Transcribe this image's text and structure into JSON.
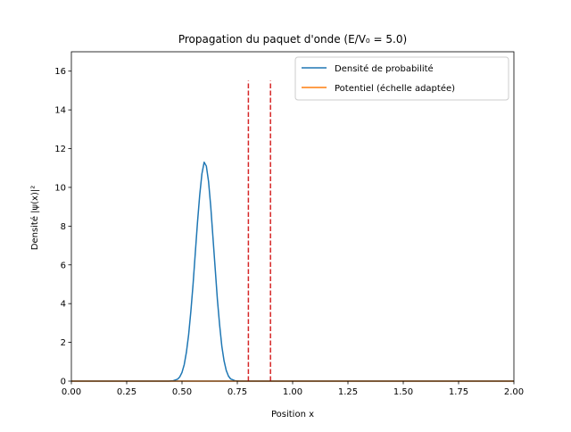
{
  "chart_data": {
    "type": "line",
    "title": "Propagation du paquet d'onde (E/V₀ = 5.0)",
    "xlabel": "Position x",
    "ylabel": "Densité |ψ(x)|²",
    "xlim": [
      0,
      2
    ],
    "ylim": [
      0,
      17
    ],
    "xticks": [
      0,
      0.25,
      0.5,
      0.75,
      1.0,
      1.25,
      1.5,
      1.75,
      2.0
    ],
    "xtick_labels": [
      "0.00",
      "0.25",
      "0.50",
      "0.75",
      "1.00",
      "1.25",
      "1.50",
      "1.75",
      "2.00"
    ],
    "yticks": [
      0,
      2,
      4,
      6,
      8,
      10,
      12,
      14,
      16
    ],
    "ytick_labels": [
      "0",
      "2",
      "4",
      "6",
      "8",
      "10",
      "12",
      "14",
      "16"
    ],
    "grid": false,
    "legend_position": "top-right",
    "series": [
      {
        "name": "Densité de probabilité",
        "color": "#1f77b4",
        "x": [
          0,
          0.44,
          0.46,
          0.48,
          0.49,
          0.5,
          0.51,
          0.52,
          0.53,
          0.54,
          0.55,
          0.56,
          0.57,
          0.58,
          0.59,
          0.6,
          0.61,
          0.62,
          0.63,
          0.64,
          0.65,
          0.66,
          0.67,
          0.68,
          0.69,
          0.7,
          0.71,
          0.72,
          0.74,
          0.76,
          2.0
        ],
        "y": [
          0,
          0,
          0.02,
          0.1,
          0.22,
          0.45,
          0.85,
          1.5,
          2.4,
          3.6,
          5.0,
          6.6,
          8.2,
          9.6,
          10.7,
          11.3,
          11.1,
          10.3,
          9.0,
          7.4,
          5.8,
          4.2,
          2.9,
          1.8,
          1.05,
          0.55,
          0.26,
          0.11,
          0.02,
          0,
          0
        ]
      },
      {
        "name": "Potentiel (échelle adaptée)",
        "color": "#ff7f0e",
        "x": [
          0,
          2.0
        ],
        "y": [
          0,
          0
        ]
      }
    ],
    "annotations": [
      {
        "type": "vline",
        "x": 0.8,
        "y_range": [
          0,
          15.5
        ],
        "color": "#d62728",
        "style": "dashed"
      },
      {
        "type": "vline",
        "x": 0.9,
        "y_range": [
          0,
          15.5
        ],
        "color": "#d62728",
        "style": "dashed"
      }
    ]
  }
}
